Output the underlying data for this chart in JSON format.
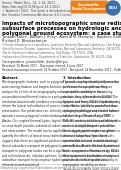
{
  "bg_color": "#ffffff",
  "header_lines": [
    "Geosci. Model Dev., 14, 1–34, 2021",
    "https://doi.org/10.5194/gmd-14-1-2021",
    "© Author(s) 2021. This work is distributed under",
    "the Creative Commons Attribution 4.0 License."
  ],
  "badge_text": "Geoscientific\nModel Development",
  "egu_text": "EGU",
  "title_line1": "Impacts of microtopographic snow redistribution and lateral",
  "title_line2": "subsurface processes on hydrologic and thermal states in an Arctic",
  "title_line3": "polygonal ground ecosystem: a case study using ELM-3D v1.0",
  "authors_line1": "Jonatan Käfer¹, William J. Riley², Alessio M. Moriarty², Baptiste Dafflon², Ruiyong Tran³, and",
  "authors_line2": "Richard D. Bhattacharya⁴",
  "aff1": "¹Climate Infrastructure Laboratory, Lawrence Berkeley National Laboratory, Oak Ridge, TN 37831, USA",
  "aff2": "²Earth Sciences Division, Lawrence Berkeley National Laboratory, Berkeley, CA 94720, USA",
  "aff3": "³Pacific Northwest National Laboratory, Oak Ridge, TN 37831, USA",
  "aff4": "⁴Independent Researcher, Department of Statistics, Saarbrücks, DE 66175, USA",
  "correspondence": "Correspondence: Jonatan Käfer: jkaefer@lbl.gov",
  "received": "Received: 16 March 2017 – Discussion started: 4 June 2017",
  "revised": "Revised manuscript received: 24 October 2017 – Accepted: 14 November 2017 – Published: 4 January 2021",
  "abstract_label": "Abstract.",
  "abstract_body": "Microtopographic features, such as polygonal ground, may significantly influence the water-energy balance and biogeochemical cycles in arctic ecosystems. Here we analyze the ef- fect of microtopography-induced spatial variability in snow accumulation and thermal states in a polygonal tun- dra region in Arctic Alaska. The simulation-based model combines microtopographic and microclimatic variability to inform the lateral redistribution of snow in a way that ex- plicitly accounts for mass preservation. Our predictions con- sistently replicate tundra landscape water balance dynamics across polygonal tundra landscape at the Interior Brooks Range (IBR) in Alaska. Our coupled thermal-hydro- logical (ELM-3D) model with observed information on snow depth provides substantial reductions in error depth between simulations and observations. The model can be applied to study polygonal tundra ecosystems to quantify the effects of lateral snow redistribution and subsurface flow. Our results suggest that there are significant positive impacts of lateral snow redistribution and lateral subsurface transport on polygonal tundra in Arctic Alaska. We find that lateral transport in polygonal tundra can be a significant component in tundra energy fluxes and soil moisture dis- tribution patterns. Combining lateral redistribution of snow and subsurface transport helps improve hydrological simula- tions of spatial variability in information and analysis of",
  "intro_label": "1  Introduction",
  "intro_body": "The arctic tundra is particularly sensitive to climate change with warming expected to continue in the coming decades (e.g., Hinzman et al., 2013; Serreze and Barry, 2011). Rapid warming in the Arctic has led to permafrost thaw, changing hydrology, and altered carbon balance (e.g., Schuur et al., 2015). Recent concerns with the availability of water in the hydrological cycle of the Arctic region and its impact on global climate change have generated considerable interest in understanding permafrost and soil moisture dynamics in Arctic ecosystems (Romano et al., 2015). Here we present a simulation study to examine the influence of micro- topographic variability on snow distributions in Arctic poly- gonal tundra (Nitzbon et al., 2019). Our model implements (Painter et al., 2016) and land subsurface processes for the simulation of permafrost dynamics within spatially variable microtopographic landforms (Kumar et al., 2016). We examine the three-dimensional variability of soil temperature and moisture fields at 1172 cm² IBR from decomposition of a polygonal land surface of",
  "footer_text": "Published by Copernicus Publications on behalf of the European Geosciences Union.",
  "orange": "#e8821a",
  "light_orange": "#f5a623",
  "blue": "#3a6fa8",
  "gray_header": "#f0f0f0",
  "text_dark": "#222222",
  "text_mid": "#444444",
  "text_light": "#666666"
}
